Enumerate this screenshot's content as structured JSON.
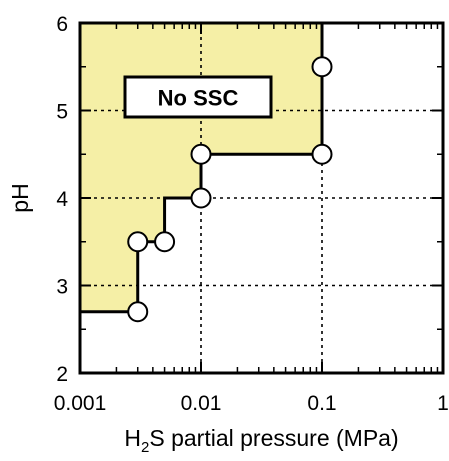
{
  "chart_data": {
    "type": "scatter",
    "xscale": "log",
    "xlim": [
      0.001,
      1
    ],
    "ylim": [
      2,
      6
    ],
    "xlabel_main": "H",
    "xlabel_sub": "2",
    "xlabel_rest": "S partial pressure (MPa)",
    "ylabel": "pH",
    "xticks": [
      {
        "value": 0.001,
        "label": "0.001"
      },
      {
        "value": 0.01,
        "label": "0.01"
      },
      {
        "value": 0.1,
        "label": "0.1"
      },
      {
        "value": 1,
        "label": "1"
      }
    ],
    "yticks": [
      {
        "value": 2,
        "label": "2"
      },
      {
        "value": 3,
        "label": "3"
      },
      {
        "value": 4,
        "label": "4"
      },
      {
        "value": 5,
        "label": "5"
      },
      {
        "value": 6,
        "label": "6"
      }
    ],
    "gridlines": "dotted",
    "annotation": "No SSC",
    "region_color": "#f5efa6",
    "boundary": [
      {
        "x": 0.001,
        "y": 2.7
      },
      {
        "x": 0.003,
        "y": 2.7
      },
      {
        "x": 0.003,
        "y": 3.5
      },
      {
        "x": 0.005,
        "y": 3.5
      },
      {
        "x": 0.005,
        "y": 4.0
      },
      {
        "x": 0.01,
        "y": 4.0
      },
      {
        "x": 0.01,
        "y": 4.5
      },
      {
        "x": 0.1,
        "y": 4.5
      },
      {
        "x": 0.1,
        "y": 6.0
      }
    ],
    "points": [
      {
        "x": 0.003,
        "y": 2.7
      },
      {
        "x": 0.003,
        "y": 3.5
      },
      {
        "x": 0.005,
        "y": 3.5
      },
      {
        "x": 0.01,
        "y": 4.0
      },
      {
        "x": 0.01,
        "y": 4.5
      },
      {
        "x": 0.1,
        "y": 4.5
      },
      {
        "x": 0.1,
        "y": 5.5
      }
    ]
  }
}
